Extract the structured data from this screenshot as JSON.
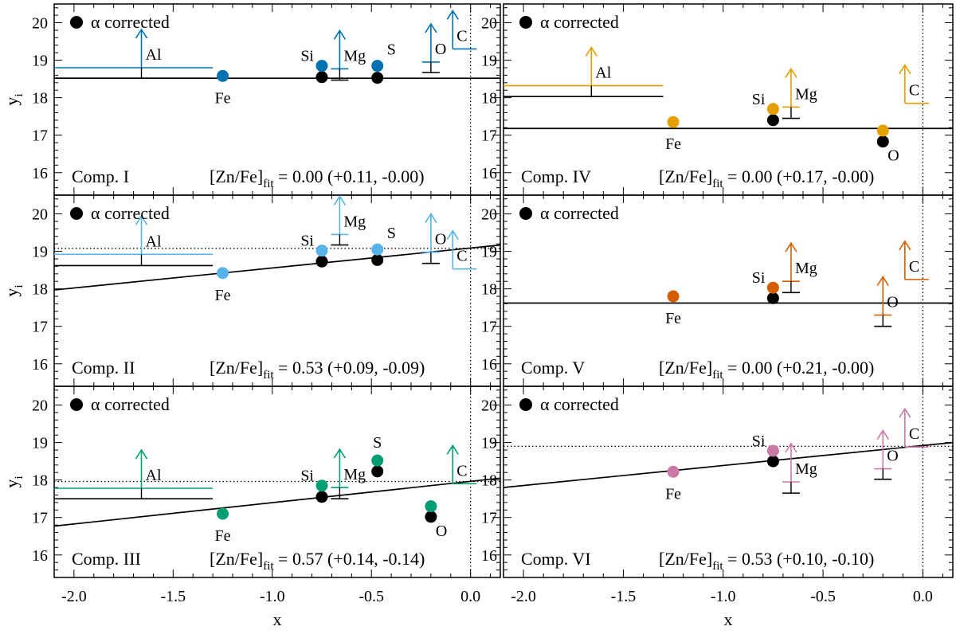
{
  "figure": {
    "xlabel": "x",
    "ylabel": "y",
    "ylabel_sub": "i",
    "x_ticks": [
      "-2.0",
      "-1.5",
      "-1.0",
      "-0.5",
      "0.0"
    ],
    "y_ticks": [
      "16",
      "17",
      "18",
      "19",
      "20"
    ]
  },
  "chart_data": [
    {
      "type": "scatter",
      "name": "Comp. I",
      "legend": "α corrected",
      "fit_prefix": "[Zn/Fe]",
      "fit_sub": "fit",
      "fit_text": " =  0.00 (+0.11, -0.00)",
      "zn_fe_fit": 0.0,
      "err_plus": 0.11,
      "err_minus": 0.0,
      "color": "#0072b2",
      "xlim": [
        -2.1,
        0.15
      ],
      "ylim": [
        15.4,
        20.5
      ],
      "fit_line": {
        "x": [
          -2.1,
          0.15
        ],
        "y": [
          18.52,
          18.52
        ]
      },
      "dotted_h": null,
      "dotted_v": 0.0,
      "points": [
        {
          "el": "Fe",
          "x": -1.25,
          "y": 18.58,
          "y_black": null,
          "label_pos": "below"
        },
        {
          "el": "Si",
          "x": -0.75,
          "y": 18.85,
          "y_black": 18.55,
          "label_pos": "left"
        },
        {
          "el": "S",
          "x": -0.47,
          "y": 18.85,
          "y_black": 18.53,
          "label_pos": "right"
        }
      ],
      "limits": [
        {
          "el": "Al",
          "x": -1.66,
          "y": 18.8,
          "y_black": 18.52,
          "x_range": [
            -2.1,
            -1.3
          ]
        },
        {
          "el": "Mg",
          "x": -0.66,
          "y": 18.77,
          "y_black": 18.47
        },
        {
          "el": "O",
          "x": -0.2,
          "y": 18.95,
          "y_black": 18.67
        },
        {
          "el": "C",
          "x": -0.09,
          "y": 19.3,
          "y_black": null,
          "x_range": [
            -0.09,
            0.03
          ]
        }
      ]
    },
    {
      "type": "scatter",
      "name": "Comp. II",
      "legend": "α corrected",
      "fit_prefix": "[Zn/Fe]",
      "fit_sub": "fit",
      "fit_text": " =  0.53 (+0.09, -0.09)",
      "zn_fe_fit": 0.53,
      "err_plus": 0.09,
      "err_minus": 0.09,
      "color": "#56b4e9",
      "xlim": [
        -2.1,
        0.15
      ],
      "ylim": [
        15.4,
        20.5
      ],
      "fit_line": {
        "x": [
          -2.1,
          0.15
        ],
        "y": [
          17.97,
          19.17
        ]
      },
      "dotted_h": 19.08,
      "dotted_v": 0.0,
      "points": [
        {
          "el": "Fe",
          "x": -1.25,
          "y": 18.42,
          "y_black": null,
          "label_pos": "below"
        },
        {
          "el": "Si",
          "x": -0.75,
          "y": 19.02,
          "y_black": 18.73,
          "label_pos": "left"
        },
        {
          "el": "S",
          "x": -0.47,
          "y": 19.05,
          "y_black": 18.77,
          "label_pos": "right"
        }
      ],
      "limits": [
        {
          "el": "Al",
          "x": -1.66,
          "y": 18.92,
          "y_black": 18.62,
          "x_range": [
            -2.1,
            -1.3
          ]
        },
        {
          "el": "Mg",
          "x": -0.66,
          "y": 19.45,
          "y_black": 19.17
        },
        {
          "el": "O",
          "x": -0.2,
          "y": 18.98,
          "y_black": 18.68
        },
        {
          "el": "C",
          "x": -0.09,
          "y": 18.53,
          "y_black": null,
          "x_range": [
            -0.09,
            0.03
          ]
        }
      ]
    },
    {
      "type": "scatter",
      "name": "Comp. III",
      "legend": "α corrected",
      "fit_prefix": "[Zn/Fe]",
      "fit_sub": "fit",
      "fit_text": " =  0.57 (+0.14, -0.14)",
      "zn_fe_fit": 0.57,
      "err_plus": 0.14,
      "err_minus": 0.14,
      "color": "#009e73",
      "xlim": [
        -2.1,
        0.15
      ],
      "ylim": [
        15.4,
        20.5
      ],
      "fit_line": {
        "x": [
          -2.1,
          0.15
        ],
        "y": [
          16.77,
          18.05
        ]
      },
      "dotted_h": 17.96,
      "dotted_v": 0.0,
      "points": [
        {
          "el": "Fe",
          "x": -1.25,
          "y": 17.1,
          "y_black": null,
          "label_pos": "below"
        },
        {
          "el": "Si",
          "x": -0.75,
          "y": 17.85,
          "y_black": 17.55,
          "label_pos": "left"
        },
        {
          "el": "S",
          "x": -0.47,
          "y": 18.52,
          "y_black": 18.23,
          "label_pos": "above"
        },
        {
          "el": "O",
          "x": -0.2,
          "y": 17.3,
          "y_black": 17.02,
          "label_pos": "below-right"
        }
      ],
      "limits": [
        {
          "el": "Al",
          "x": -1.66,
          "y": 17.78,
          "y_black": 17.5,
          "x_range": [
            -2.1,
            -1.3
          ]
        },
        {
          "el": "Mg",
          "x": -0.66,
          "y": 17.8,
          "y_black": 17.5
        },
        {
          "el": "C",
          "x": -0.09,
          "y": 17.9,
          "y_black": null,
          "x_range": [
            -0.09,
            0.03
          ]
        }
      ]
    },
    {
      "type": "scatter",
      "name": "Comp. IV",
      "legend": "α corrected",
      "fit_prefix": "[Zn/Fe]",
      "fit_sub": "fit",
      "fit_text": " =  0.00 (+0.17, -0.00)",
      "zn_fe_fit": 0.0,
      "err_plus": 0.17,
      "err_minus": 0.0,
      "color": "#e69f00",
      "xlim": [
        -2.1,
        0.15
      ],
      "ylim": [
        15.4,
        20.5
      ],
      "fit_line": {
        "x": [
          -2.1,
          0.15
        ],
        "y": [
          17.18,
          17.18
        ]
      },
      "dotted_h": null,
      "dotted_v": 0.0,
      "points": [
        {
          "el": "Fe",
          "x": -1.25,
          "y": 17.35,
          "y_black": null,
          "label_pos": "below"
        },
        {
          "el": "Si",
          "x": -0.75,
          "y": 17.7,
          "y_black": 17.4,
          "label_pos": "left"
        },
        {
          "el": "O",
          "x": -0.2,
          "y": 17.12,
          "y_black": 16.83,
          "label_pos": "below-right"
        }
      ],
      "limits": [
        {
          "el": "Al",
          "x": -1.66,
          "y": 18.32,
          "y_black": 18.03,
          "x_range": [
            -2.1,
            -1.3
          ]
        },
        {
          "el": "Mg",
          "x": -0.66,
          "y": 17.75,
          "y_black": 17.45
        },
        {
          "el": "C",
          "x": -0.09,
          "y": 17.85,
          "y_black": null,
          "x_range": [
            -0.09,
            0.03
          ]
        }
      ]
    },
    {
      "type": "scatter",
      "name": "Comp. V",
      "legend": "α corrected",
      "fit_prefix": "[Zn/Fe]",
      "fit_sub": "fit",
      "fit_text": " =  0.00 (+0.21, -0.00)",
      "zn_fe_fit": 0.0,
      "err_plus": 0.21,
      "err_minus": 0.0,
      "color": "#d55e00",
      "xlim": [
        -2.1,
        0.15
      ],
      "ylim": [
        15.4,
        20.5
      ],
      "fit_line": {
        "x": [
          -2.1,
          0.15
        ],
        "y": [
          17.62,
          17.62
        ]
      },
      "dotted_h": null,
      "dotted_v": 0.0,
      "points": [
        {
          "el": "Fe",
          "x": -1.25,
          "y": 17.8,
          "y_black": null,
          "label_pos": "below"
        },
        {
          "el": "Si",
          "x": -0.75,
          "y": 18.03,
          "y_black": 17.75,
          "label_pos": "left"
        }
      ],
      "limits": [
        {
          "el": "Mg",
          "x": -0.66,
          "y": 18.2,
          "y_black": 17.9
        },
        {
          "el": "O",
          "x": -0.2,
          "y": 17.3,
          "y_black": 17.0
        },
        {
          "el": "C",
          "x": -0.09,
          "y": 18.25,
          "y_black": null,
          "x_range": [
            -0.09,
            0.03
          ]
        }
      ]
    },
    {
      "type": "scatter",
      "name": "Comp. VI",
      "legend": "α corrected",
      "fit_prefix": "[Zn/Fe]",
      "fit_sub": "fit",
      "fit_text": " =  0.53 (+0.10, -0.10)",
      "zn_fe_fit": 0.53,
      "err_plus": 0.1,
      "err_minus": 0.1,
      "color": "#cc79a7",
      "xlim": [
        -2.1,
        0.15
      ],
      "ylim": [
        15.4,
        20.5
      ],
      "fit_line": {
        "x": [
          -2.1,
          0.15
        ],
        "y": [
          17.8,
          19.0
        ]
      },
      "dotted_h": 18.9,
      "dotted_v": 0.0,
      "points": [
        {
          "el": "Fe",
          "x": -1.25,
          "y": 18.22,
          "y_black": null,
          "label_pos": "below"
        },
        {
          "el": "Si",
          "x": -0.75,
          "y": 18.78,
          "y_black": 18.5,
          "label_pos": "left"
        }
      ],
      "limits": [
        {
          "el": "Mg",
          "x": -0.66,
          "y": 17.95,
          "y_black": 17.65
        },
        {
          "el": "O",
          "x": -0.2,
          "y": 18.3,
          "y_black": 18.02
        },
        {
          "el": "C",
          "x": -0.09,
          "y": 18.88,
          "y_black": null,
          "x_range": [
            -0.09,
            0.03
          ]
        }
      ]
    }
  ]
}
